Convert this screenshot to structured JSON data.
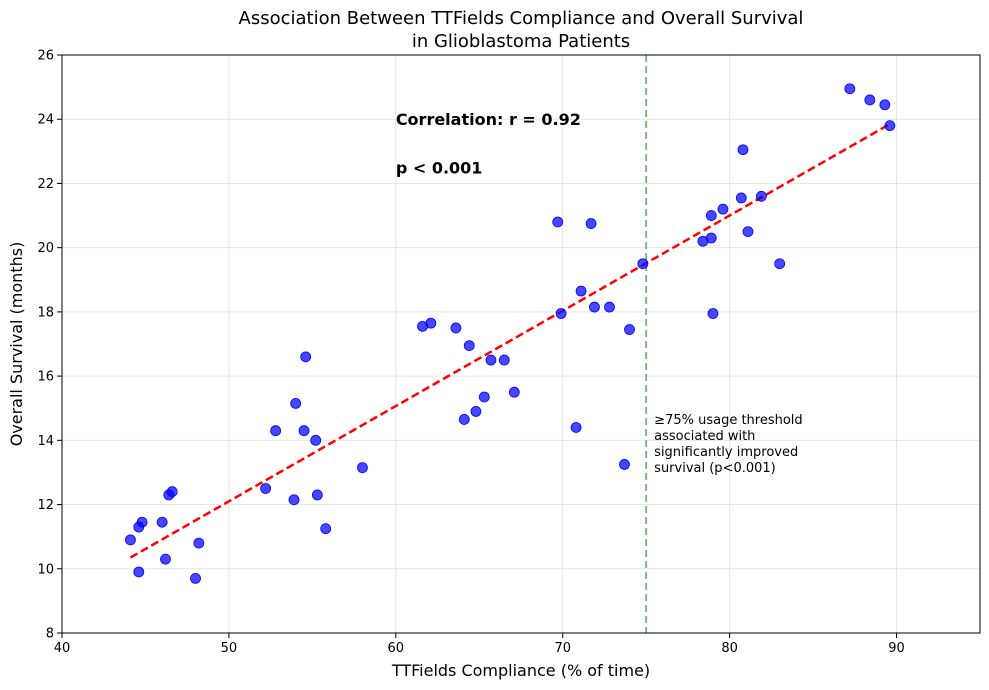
{
  "chart_data": {
    "type": "scatter",
    "title_line1": "Association Between TTFields Compliance and Overall Survival",
    "title_line2": "in Glioblastoma Patients",
    "xlabel": "TTFields Compliance (% of time)",
    "ylabel": "Overall Survival (months)",
    "xlim": [
      40,
      95
    ],
    "ylim": [
      8,
      26
    ],
    "xticks": [
      40,
      50,
      60,
      70,
      80,
      90
    ],
    "yticks": [
      8,
      10,
      12,
      14,
      16,
      18,
      20,
      22,
      24,
      26
    ],
    "grid": true,
    "point_color": "#0000ff",
    "trend_color": "#ff0000",
    "threshold_color": "#4caf50",
    "points": [
      {
        "x": 44.1,
        "y": 10.9
      },
      {
        "x": 44.6,
        "y": 11.3
      },
      {
        "x": 44.8,
        "y": 11.45
      },
      {
        "x": 44.6,
        "y": 9.9
      },
      {
        "x": 46.0,
        "y": 11.45
      },
      {
        "x": 46.2,
        "y": 10.3
      },
      {
        "x": 46.4,
        "y": 12.3
      },
      {
        "x": 46.6,
        "y": 12.4
      },
      {
        "x": 48.0,
        "y": 9.7
      },
      {
        "x": 48.2,
        "y": 10.8
      },
      {
        "x": 52.2,
        "y": 12.5
      },
      {
        "x": 52.8,
        "y": 14.3
      },
      {
        "x": 53.9,
        "y": 12.15
      },
      {
        "x": 54.0,
        "y": 15.15
      },
      {
        "x": 54.5,
        "y": 14.3
      },
      {
        "x": 54.6,
        "y": 16.6
      },
      {
        "x": 55.2,
        "y": 14.0
      },
      {
        "x": 55.3,
        "y": 12.3
      },
      {
        "x": 55.8,
        "y": 11.25
      },
      {
        "x": 58.0,
        "y": 13.15
      },
      {
        "x": 61.6,
        "y": 17.55
      },
      {
        "x": 62.1,
        "y": 17.65
      },
      {
        "x": 63.6,
        "y": 17.5
      },
      {
        "x": 64.1,
        "y": 14.65
      },
      {
        "x": 64.4,
        "y": 16.95
      },
      {
        "x": 64.8,
        "y": 14.9
      },
      {
        "x": 65.3,
        "y": 15.35
      },
      {
        "x": 65.7,
        "y": 16.5
      },
      {
        "x": 66.5,
        "y": 16.5
      },
      {
        "x": 67.1,
        "y": 15.5
      },
      {
        "x": 69.7,
        "y": 20.8
      },
      {
        "x": 69.9,
        "y": 17.95
      },
      {
        "x": 70.8,
        "y": 14.4
      },
      {
        "x": 71.1,
        "y": 18.65
      },
      {
        "x": 71.7,
        "y": 20.75
      },
      {
        "x": 71.9,
        "y": 18.15
      },
      {
        "x": 72.8,
        "y": 18.15
      },
      {
        "x": 73.7,
        "y": 13.25
      },
      {
        "x": 74.0,
        "y": 17.45
      },
      {
        "x": 74.8,
        "y": 19.5
      },
      {
        "x": 78.4,
        "y": 20.2
      },
      {
        "x": 78.9,
        "y": 20.3
      },
      {
        "x": 78.9,
        "y": 21.0
      },
      {
        "x": 79.0,
        "y": 17.95
      },
      {
        "x": 79.6,
        "y": 21.2
      },
      {
        "x": 80.7,
        "y": 21.55
      },
      {
        "x": 80.8,
        "y": 23.05
      },
      {
        "x": 81.1,
        "y": 20.5
      },
      {
        "x": 81.9,
        "y": 21.6
      },
      {
        "x": 83.0,
        "y": 19.5
      },
      {
        "x": 87.2,
        "y": 24.95
      },
      {
        "x": 88.4,
        "y": 24.6
      },
      {
        "x": 89.3,
        "y": 24.45
      },
      {
        "x": 89.6,
        "y": 23.8
      }
    ],
    "trendline": {
      "x": [
        44.1,
        89.6
      ],
      "y": [
        10.35,
        23.85
      ]
    },
    "threshold": {
      "x": 75,
      "annotation": [
        "≥75% usage threshold",
        "associated with",
        "significantly improved",
        "survival (p<0.001)"
      ]
    },
    "annotations": {
      "correlation": "Correlation: r = 0.92",
      "pvalue": "p < 0.001",
      "correlation_pos": {
        "x": 60,
        "y": 24.0
      },
      "pvalue_pos": {
        "x": 60,
        "y": 22.5
      }
    }
  }
}
